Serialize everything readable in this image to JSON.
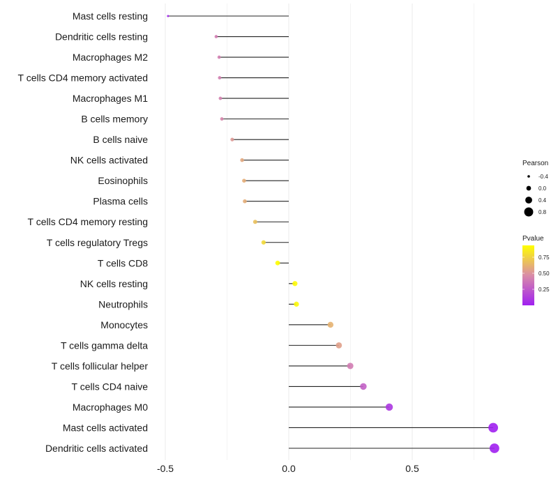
{
  "chart_data": {
    "type": "lollipop",
    "title": "",
    "xlabel": "",
    "ylabel": "",
    "xlim": [
      -0.5,
      0.85
    ],
    "xticks": [
      -0.5,
      0.0,
      0.5
    ],
    "xtick_labels": [
      "-0.5",
      "0.0",
      "0.5"
    ],
    "grid": true,
    "categories": [
      "Mast cells resting",
      "Dendritic cells resting",
      "Macrophages M2",
      "T cells CD4 memory activated",
      "Macrophages M1",
      "B cells memory",
      "B cells naive",
      "NK cells activated",
      "Eosinophils",
      "Plasma cells",
      "T cells CD4 memory resting",
      "T cells regulatory  Tregs ",
      "T cells CD8",
      "NK cells resting",
      "Neutrophils",
      "Monocytes",
      "T cells gamma delta",
      "T cells follicular helper",
      "T cells CD4 naive",
      "Macrophages M0",
      "Mast cells activated",
      "Dendritic cells activated"
    ],
    "pearson": [
      -0.489,
      -0.294,
      -0.282,
      -0.28,
      -0.277,
      -0.271,
      -0.229,
      -0.189,
      -0.181,
      -0.178,
      -0.136,
      -0.102,
      -0.045,
      0.025,
      0.031,
      0.169,
      0.203,
      0.249,
      0.302,
      0.407,
      0.828,
      0.833
    ],
    "pvalue": [
      0.02,
      0.4,
      0.41,
      0.41,
      0.42,
      0.44,
      0.52,
      0.58,
      0.6,
      0.6,
      0.68,
      0.78,
      0.93,
      0.92,
      0.91,
      0.62,
      0.55,
      0.4,
      0.28,
      0.1,
      0.0,
      0.0
    ],
    "legend_size": {
      "title": "Pearson",
      "values": [
        -0.4,
        0.0,
        0.4,
        0.8
      ],
      "labels": [
        "-0.4",
        "0.0",
        "0.4",
        "0.8"
      ],
      "placement": "right"
    },
    "legend_color": {
      "title": "Pvalue",
      "range": [
        0.0,
        0.935
      ],
      "ticks": [
        0.25,
        0.5,
        0.75
      ],
      "labels": [
        "0.25",
        "0.50",
        "0.75"
      ],
      "low_color": "#a020f0",
      "mid_color": "#d98ca8",
      "high_color": "#ffff00",
      "placement": "right"
    }
  }
}
